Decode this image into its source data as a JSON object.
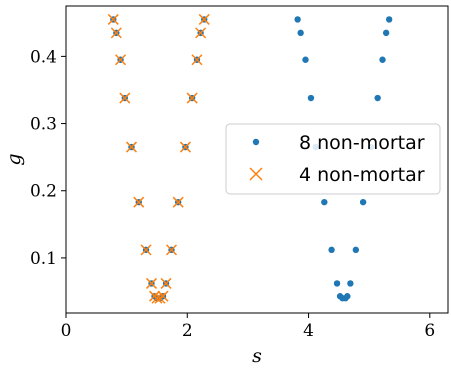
{
  "chart_data": {
    "type": "scatter",
    "xlabel": "s",
    "ylabel": "g",
    "xlim": [
      0,
      6.3
    ],
    "ylim": [
      0.018,
      0.475
    ],
    "xticks": [
      0,
      2,
      4,
      6
    ],
    "yticks": [
      0.1,
      0.2,
      0.3,
      0.4
    ],
    "xtick_labels": [
      "0",
      "2",
      "4",
      "6"
    ],
    "ytick_labels": [
      "0.1",
      "0.2",
      "0.3",
      "0.4"
    ],
    "grid": false,
    "legend": "center-right",
    "series": [
      {
        "name": "8 non-mortar",
        "marker": "dot",
        "color": "#1f77b4",
        "points": [
          [
            0.78,
            0.455
          ],
          [
            0.83,
            0.435
          ],
          [
            0.9,
            0.395
          ],
          [
            0.97,
            0.338
          ],
          [
            1.08,
            0.265
          ],
          [
            1.2,
            0.183
          ],
          [
            1.32,
            0.112
          ],
          [
            1.41,
            0.062
          ],
          [
            1.46,
            0.043
          ],
          [
            1.5,
            0.04
          ],
          [
            1.55,
            0.04
          ],
          [
            1.6,
            0.043
          ],
          [
            1.65,
            0.062
          ],
          [
            1.74,
            0.112
          ],
          [
            1.85,
            0.183
          ],
          [
            1.97,
            0.265
          ],
          [
            2.08,
            0.338
          ],
          [
            2.16,
            0.395
          ],
          [
            2.22,
            0.435
          ],
          [
            2.28,
            0.455
          ],
          [
            3.82,
            0.455
          ],
          [
            3.87,
            0.435
          ],
          [
            3.95,
            0.395
          ],
          [
            4.04,
            0.338
          ],
          [
            4.12,
            0.265
          ],
          [
            4.26,
            0.183
          ],
          [
            4.38,
            0.112
          ],
          [
            4.47,
            0.062
          ],
          [
            4.52,
            0.043
          ],
          [
            4.56,
            0.04
          ],
          [
            4.61,
            0.04
          ],
          [
            4.64,
            0.043
          ],
          [
            4.69,
            0.062
          ],
          [
            4.78,
            0.112
          ],
          [
            4.9,
            0.183
          ],
          [
            5.03,
            0.265
          ],
          [
            5.14,
            0.338
          ],
          [
            5.22,
            0.395
          ],
          [
            5.28,
            0.435
          ],
          [
            5.33,
            0.455
          ]
        ]
      },
      {
        "name": "4 non-mortar",
        "marker": "x",
        "color": "#ff7f0e",
        "points": [
          [
            0.78,
            0.455
          ],
          [
            0.83,
            0.435
          ],
          [
            0.9,
            0.395
          ],
          [
            0.97,
            0.338
          ],
          [
            1.08,
            0.265
          ],
          [
            1.2,
            0.183
          ],
          [
            1.32,
            0.112
          ],
          [
            1.41,
            0.062
          ],
          [
            1.46,
            0.043
          ],
          [
            1.5,
            0.04
          ],
          [
            1.55,
            0.04
          ],
          [
            1.6,
            0.043
          ],
          [
            1.65,
            0.062
          ],
          [
            1.74,
            0.112
          ],
          [
            1.85,
            0.183
          ],
          [
            1.97,
            0.265
          ],
          [
            2.08,
            0.338
          ],
          [
            2.16,
            0.395
          ],
          [
            2.22,
            0.435
          ],
          [
            2.28,
            0.455
          ]
        ]
      }
    ]
  }
}
